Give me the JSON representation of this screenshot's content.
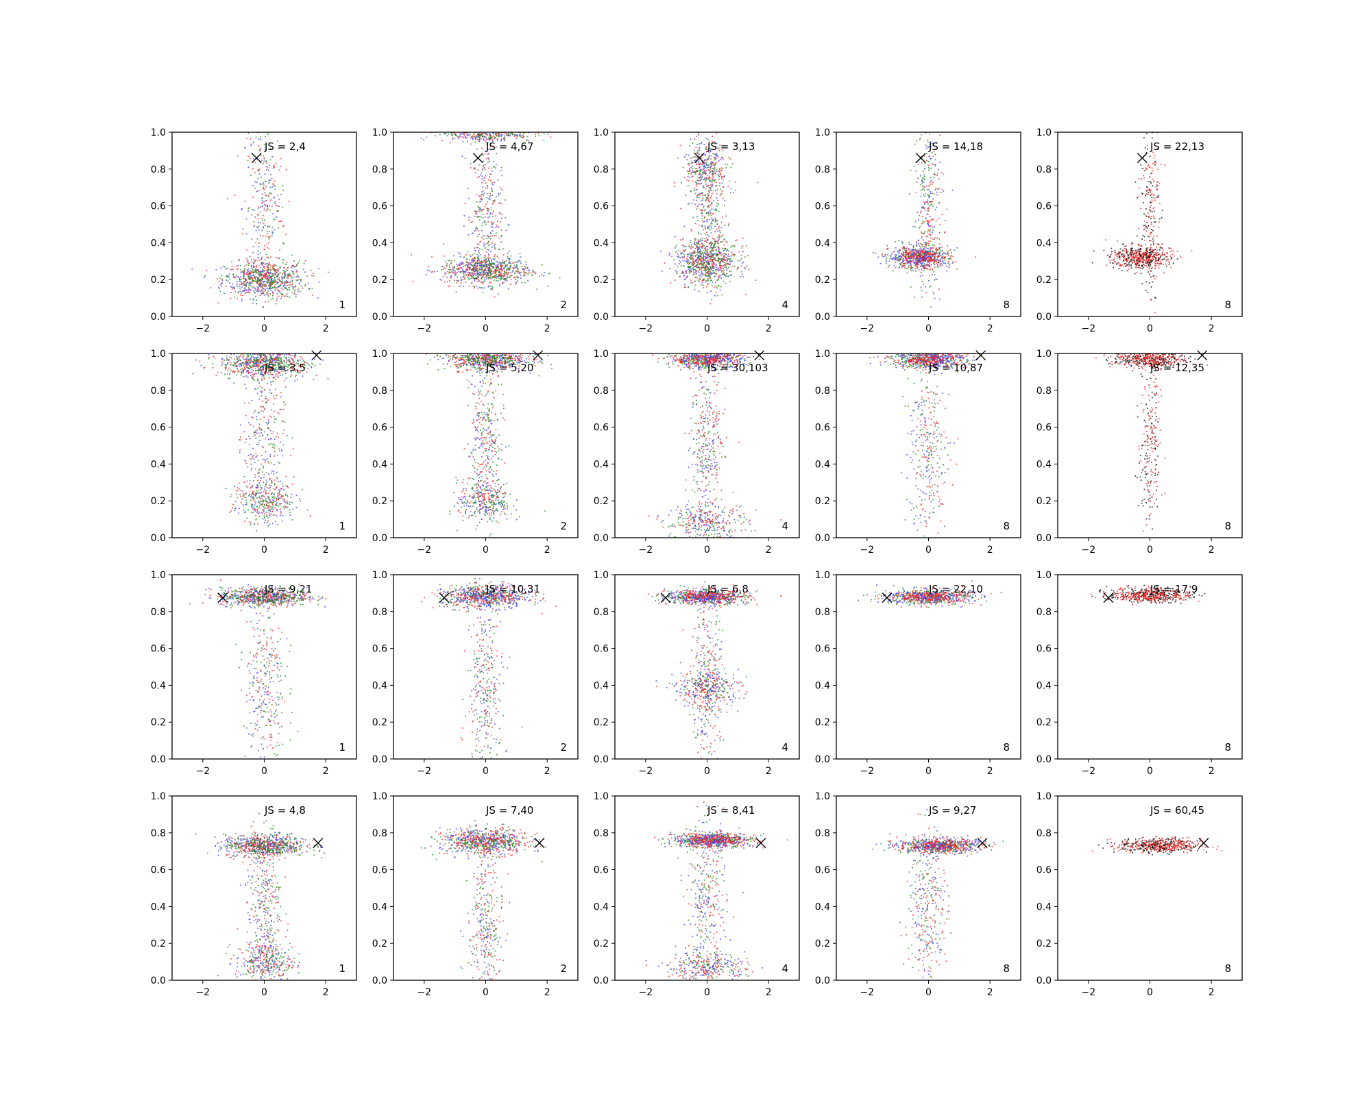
{
  "figure": {
    "rows": 4,
    "cols": 5,
    "xlim": [
      -3,
      3
    ],
    "ylim": [
      0,
      1
    ],
    "xticks": [
      "−2",
      "0",
      "2"
    ],
    "yticks": [
      "0.0",
      "0.2",
      "0.4",
      "0.6",
      "0.8",
      "1.0"
    ],
    "colors": {
      "blue": "#3a3aff",
      "red": "#ff2020",
      "green": "#1a8a1a",
      "black": "#000000"
    }
  },
  "chart_data": [
    {
      "type": "scatter",
      "row": 1,
      "col": 1,
      "js_label": "JS = 2,4",
      "corner_label": "1",
      "marker": {
        "x": -0.25,
        "y": 0.86
      },
      "series": [
        "blue",
        "red",
        "green"
      ],
      "clusters": [
        {
          "cx": 0,
          "cy": 0.2,
          "sx": 1.2,
          "sy": 0.05
        },
        {
          "cx": 0,
          "cy": 0.6,
          "sx": 0.6,
          "sy": 0.25
        }
      ]
    },
    {
      "type": "scatter",
      "row": 1,
      "col": 2,
      "js_label": "JS = 4,67",
      "corner_label": "2",
      "marker": {
        "x": -0.25,
        "y": 0.86
      },
      "series": [
        "blue",
        "red",
        "green"
      ],
      "clusters": [
        {
          "cx": 0,
          "cy": 0.25,
          "sx": 1.3,
          "sy": 0.04
        },
        {
          "cx": 0,
          "cy": 0.99,
          "sx": 1.4,
          "sy": 0.02
        },
        {
          "cx": 0,
          "cy": 0.55,
          "sx": 0.5,
          "sy": 0.2
        }
      ]
    },
    {
      "type": "scatter",
      "row": 1,
      "col": 3,
      "js_label": "JS = 3,13",
      "corner_label": "4",
      "marker": {
        "x": -0.25,
        "y": 0.86
      },
      "series": [
        "blue",
        "red",
        "green"
      ],
      "clusters": [
        {
          "cx": 0,
          "cy": 0.3,
          "sx": 0.9,
          "sy": 0.06
        },
        {
          "cx": 0,
          "cy": 0.8,
          "sx": 0.7,
          "sy": 0.08
        },
        {
          "cx": 0,
          "cy": 0.55,
          "sx": 0.5,
          "sy": 0.2
        }
      ]
    },
    {
      "type": "scatter",
      "row": 1,
      "col": 4,
      "js_label": "JS = 14,18",
      "corner_label": "8",
      "marker": {
        "x": -0.25,
        "y": 0.86
      },
      "series": [
        "green",
        "blue",
        "red"
      ],
      "clusters": [
        {
          "cx": -0.3,
          "cy": 0.32,
          "sx": 0.9,
          "sy": 0.03
        },
        {
          "cx": 0,
          "cy": 0.6,
          "sx": 0.4,
          "sy": 0.25
        }
      ]
    },
    {
      "type": "scatter",
      "row": 1,
      "col": 5,
      "js_label": "JS = 22,13",
      "corner_label": "8",
      "marker": {
        "x": -0.25,
        "y": 0.86
      },
      "series": [
        "black",
        "red"
      ],
      "clusters": [
        {
          "cx": -0.3,
          "cy": 0.32,
          "sx": 0.9,
          "sy": 0.03
        },
        {
          "cx": 0,
          "cy": 0.6,
          "sx": 0.3,
          "sy": 0.25
        }
      ]
    },
    {
      "type": "scatter",
      "row": 2,
      "col": 1,
      "js_label": "JS = 3,5",
      "corner_label": "1",
      "marker": {
        "x": 1.7,
        "y": 0.99
      },
      "series": [
        "blue",
        "red",
        "green"
      ],
      "clusters": [
        {
          "cx": 0,
          "cy": 0.95,
          "sx": 1.3,
          "sy": 0.04
        },
        {
          "cx": 0,
          "cy": 0.2,
          "sx": 0.9,
          "sy": 0.06
        },
        {
          "cx": 0,
          "cy": 0.55,
          "sx": 0.6,
          "sy": 0.25
        }
      ]
    },
    {
      "type": "scatter",
      "row": 2,
      "col": 2,
      "js_label": "JS = 5,20",
      "corner_label": "2",
      "marker": {
        "x": 1.7,
        "y": 0.99
      },
      "series": [
        "blue",
        "red",
        "green"
      ],
      "clusters": [
        {
          "cx": 0,
          "cy": 0.97,
          "sx": 1.2,
          "sy": 0.03
        },
        {
          "cx": 0,
          "cy": 0.2,
          "sx": 0.8,
          "sy": 0.06
        },
        {
          "cx": 0,
          "cy": 0.55,
          "sx": 0.5,
          "sy": 0.22
        }
      ]
    },
    {
      "type": "scatter",
      "row": 2,
      "col": 3,
      "js_label": "JS = 30,103",
      "corner_label": "4",
      "marker": {
        "x": 1.7,
        "y": 0.99
      },
      "series": [
        "green",
        "blue",
        "red"
      ],
      "clusters": [
        {
          "cx": 0,
          "cy": 0.97,
          "sx": 1.1,
          "sy": 0.025
        },
        {
          "cx": 0,
          "cy": 0.08,
          "sx": 1.2,
          "sy": 0.05
        },
        {
          "cx": 0,
          "cy": 0.5,
          "sx": 0.5,
          "sy": 0.22
        }
      ]
    },
    {
      "type": "scatter",
      "row": 2,
      "col": 4,
      "js_label": "JS = 10,87",
      "corner_label": "8",
      "marker": {
        "x": 1.7,
        "y": 0.99
      },
      "series": [
        "green",
        "blue",
        "red"
      ],
      "clusters": [
        {
          "cx": 0,
          "cy": 0.97,
          "sx": 1.1,
          "sy": 0.025
        },
        {
          "cx": 0,
          "cy": 0.45,
          "sx": 0.6,
          "sy": 0.25
        }
      ]
    },
    {
      "type": "scatter",
      "row": 2,
      "col": 5,
      "js_label": "JS = 12,35",
      "corner_label": "8",
      "marker": {
        "x": 1.7,
        "y": 0.99
      },
      "series": [
        "black",
        "red"
      ],
      "clusters": [
        {
          "cx": 0,
          "cy": 0.97,
          "sx": 1.1,
          "sy": 0.025
        },
        {
          "cx": 0,
          "cy": 0.5,
          "sx": 0.3,
          "sy": 0.25
        }
      ]
    },
    {
      "type": "scatter",
      "row": 3,
      "col": 1,
      "js_label": "JS = 9,21",
      "corner_label": "1",
      "marker": {
        "x": -1.35,
        "y": 0.875
      },
      "series": [
        "blue",
        "red",
        "green"
      ],
      "clusters": [
        {
          "cx": 0,
          "cy": 0.88,
          "sx": 1.3,
          "sy": 0.025
        },
        {
          "cx": 0,
          "cy": 0.4,
          "sx": 0.6,
          "sy": 0.25
        }
      ]
    },
    {
      "type": "scatter",
      "row": 3,
      "col": 2,
      "js_label": "JS = 10,31",
      "corner_label": "2",
      "marker": {
        "x": -1.35,
        "y": 0.875
      },
      "series": [
        "green",
        "red",
        "blue"
      ],
      "clusters": [
        {
          "cx": 0,
          "cy": 0.88,
          "sx": 1.3,
          "sy": 0.03
        },
        {
          "cx": 0,
          "cy": 0.4,
          "sx": 0.5,
          "sy": 0.25
        }
      ]
    },
    {
      "type": "scatter",
      "row": 3,
      "col": 3,
      "js_label": "JS = 6,8",
      "corner_label": "4",
      "marker": {
        "x": -1.35,
        "y": 0.875
      },
      "series": [
        "green",
        "blue",
        "red"
      ],
      "clusters": [
        {
          "cx": 0,
          "cy": 0.88,
          "sx": 1.2,
          "sy": 0.02
        },
        {
          "cx": 0,
          "cy": 0.38,
          "sx": 1.0,
          "sy": 0.05
        },
        {
          "cx": 0,
          "cy": 0.4,
          "sx": 0.5,
          "sy": 0.25
        }
      ]
    },
    {
      "type": "scatter",
      "row": 3,
      "col": 4,
      "js_label": "JS = 22,10",
      "corner_label": "8",
      "marker": {
        "x": -1.35,
        "y": 0.875
      },
      "series": [
        "green",
        "blue",
        "red"
      ],
      "clusters": [
        {
          "cx": 0,
          "cy": 0.88,
          "sx": 1.3,
          "sy": 0.02
        }
      ]
    },
    {
      "type": "scatter",
      "row": 3,
      "col": 5,
      "js_label": "JS = 17,9",
      "corner_label": "8",
      "marker": {
        "x": -1.35,
        "y": 0.875
      },
      "series": [
        "black",
        "red"
      ],
      "clusters": [
        {
          "cx": 0,
          "cy": 0.89,
          "sx": 1.2,
          "sy": 0.02
        }
      ]
    },
    {
      "type": "scatter",
      "row": 4,
      "col": 1,
      "js_label": "JS = 4,8",
      "corner_label": "1",
      "marker": {
        "x": 1.75,
        "y": 0.745
      },
      "series": [
        "blue",
        "red",
        "green"
      ],
      "clusters": [
        {
          "cx": 0,
          "cy": 0.73,
          "sx": 1.2,
          "sy": 0.03
        },
        {
          "cx": 0,
          "cy": 0.1,
          "sx": 0.8,
          "sy": 0.05
        },
        {
          "cx": 0,
          "cy": 0.4,
          "sx": 0.5,
          "sy": 0.22
        }
      ]
    },
    {
      "type": "scatter",
      "row": 4,
      "col": 2,
      "js_label": "JS = 7,40",
      "corner_label": "2",
      "marker": {
        "x": 1.75,
        "y": 0.745
      },
      "series": [
        "blue",
        "green",
        "red"
      ],
      "clusters": [
        {
          "cx": 0,
          "cy": 0.75,
          "sx": 1.3,
          "sy": 0.035
        },
        {
          "cx": 0,
          "cy": 0.3,
          "sx": 0.5,
          "sy": 0.2
        }
      ]
    },
    {
      "type": "scatter",
      "row": 4,
      "col": 3,
      "js_label": "JS = 8,41",
      "corner_label": "4",
      "marker": {
        "x": 1.75,
        "y": 0.745
      },
      "series": [
        "green",
        "blue",
        "red"
      ],
      "clusters": [
        {
          "cx": 0.2,
          "cy": 0.76,
          "sx": 1.2,
          "sy": 0.02
        },
        {
          "cx": 0,
          "cy": 0.07,
          "sx": 1.2,
          "sy": 0.04
        },
        {
          "cx": 0,
          "cy": 0.4,
          "sx": 0.6,
          "sy": 0.22
        }
      ]
    },
    {
      "type": "scatter",
      "row": 4,
      "col": 4,
      "js_label": "JS = 9,27",
      "corner_label": "8",
      "marker": {
        "x": 1.75,
        "y": 0.745
      },
      "series": [
        "green",
        "blue",
        "red"
      ],
      "clusters": [
        {
          "cx": 0.3,
          "cy": 0.73,
          "sx": 1.2,
          "sy": 0.02
        },
        {
          "cx": 0,
          "cy": 0.4,
          "sx": 0.6,
          "sy": 0.22
        }
      ]
    },
    {
      "type": "scatter",
      "row": 4,
      "col": 5,
      "js_label": "JS = 60,45",
      "corner_label": "8",
      "marker": {
        "x": 1.75,
        "y": 0.745
      },
      "series": [
        "black",
        "red"
      ],
      "clusters": [
        {
          "cx": 0.3,
          "cy": 0.73,
          "sx": 1.2,
          "sy": 0.02
        }
      ]
    }
  ]
}
